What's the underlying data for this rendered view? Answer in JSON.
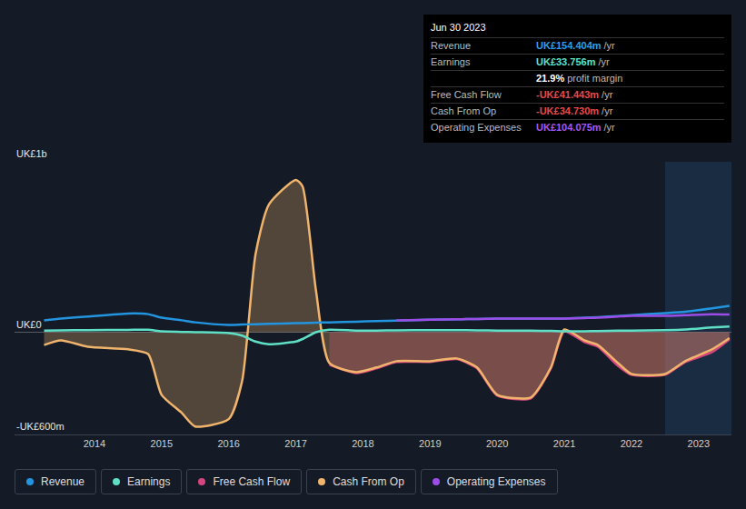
{
  "chart_data": {
    "type": "line",
    "x": [
      2013.25,
      2013.5,
      2013.9,
      2014.5,
      2014.8,
      2015,
      2015.3,
      2015.5,
      2016,
      2016.2,
      2016.4,
      2016.6,
      2017,
      2017.1,
      2017.3,
      2017.5,
      2017.9,
      2018.2,
      2018.5,
      2019,
      2019.4,
      2019.7,
      2020,
      2020.5,
      2020.8,
      2021,
      2021.3,
      2021.5,
      2021.8,
      2022,
      2022.5,
      2022.8,
      2023.2,
      2023.46
    ],
    "series": [
      {
        "name": "Revenue",
        "color": "#2394df",
        "type": "line",
        "values": [
          69,
          80,
          92,
          110,
          106,
          85,
          70,
          58,
          43,
          45,
          47,
          49,
          53,
          54,
          56,
          58,
          62,
          65,
          68,
          74,
          76,
          78,
          80,
          80,
          80,
          80,
          85,
          88,
          95,
          100,
          112,
          120,
          140,
          154.4
        ]
      },
      {
        "name": "Earnings",
        "color": "#5fe0c6",
        "type": "line",
        "values": [
          10,
          11,
          12,
          14,
          15,
          5,
          2,
          0,
          -5,
          -20,
          -55,
          -70,
          -55,
          -40,
          0,
          15,
          10,
          10,
          11,
          12,
          12,
          11,
          10,
          9,
          8,
          5,
          6,
          7,
          9,
          10,
          12,
          16,
          28,
          33.8
        ]
      },
      {
        "name": "Free Cash Flow",
        "color": "#d6457d",
        "type": "area",
        "values": [
          null,
          null,
          null,
          null,
          null,
          null,
          null,
          null,
          null,
          null,
          null,
          null,
          null,
          null,
          null,
          -191,
          -240,
          -212,
          -175,
          -174,
          -158,
          -212,
          -372,
          -388,
          -212,
          5,
          -58,
          -85,
          -197,
          -250,
          -250,
          -175,
          -117,
          -41.4
        ]
      },
      {
        "name": "Cash From Op",
        "color": "#f0b46c",
        "type": "area",
        "values": [
          -75,
          -48,
          -85,
          -100,
          -128,
          -367,
          -473,
          -553,
          -510,
          -287,
          457,
          750,
          894,
          856,
          245,
          -181,
          -234,
          -207,
          -170,
          -170,
          -154,
          -207,
          -367,
          -383,
          -207,
          16,
          -48,
          -75,
          -181,
          -245,
          -245,
          -170,
          -101,
          -34.7
        ]
      },
      {
        "name": "Operating Expenses",
        "color": "#9c4de8",
        "type": "line",
        "values": [
          null,
          null,
          null,
          null,
          null,
          null,
          null,
          null,
          null,
          null,
          null,
          null,
          null,
          null,
          null,
          null,
          null,
          null,
          69,
          74,
          76,
          78,
          80,
          80,
          80,
          80,
          83,
          85,
          92,
          96,
          96,
          100,
          106,
          104.1
        ]
      }
    ],
    "xlim": [
      2012.81,
      2023.49
    ],
    "xticks": [
      2014,
      2015,
      2016,
      2017,
      2018,
      2019,
      2020,
      2021,
      2022,
      2023
    ],
    "ylim": [
      -600,
      1000
    ],
    "yticks": [
      {
        "value": 1000,
        "label": "UK£1b"
      },
      {
        "value": 0,
        "label": "UK£0"
      },
      {
        "value": -600,
        "label": "-UK£600m"
      }
    ],
    "grid": true,
    "legend": "bottom",
    "highlight_from": 2022.5
  },
  "tooltip": {
    "date": "Jun 30 2023",
    "rows": [
      {
        "label": "Revenue",
        "value": "UK£154.404m",
        "unit": "/yr",
        "color": "#2d9fea"
      },
      {
        "label": "Earnings",
        "value": "UK£33.756m",
        "unit": "/yr",
        "color": "#5fe0c6"
      },
      {
        "label": "",
        "value": "21.9%",
        "unit": "profit margin",
        "color": "#ffffff"
      },
      {
        "label": "Free Cash Flow",
        "value": "-UK£41.443m",
        "unit": "/yr",
        "color": "#e84a4a"
      },
      {
        "label": "Cash From Op",
        "value": "-UK£34.730m",
        "unit": "/yr",
        "color": "#e84a4a"
      },
      {
        "label": "Operating Expenses",
        "value": "UK£104.075m",
        "unit": "/yr",
        "color": "#a757f0"
      }
    ]
  }
}
